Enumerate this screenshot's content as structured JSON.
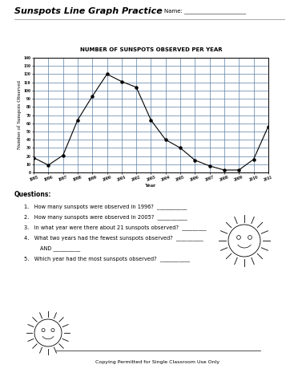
{
  "document": {
    "header": {
      "title": "Sunspots Line Graph Practice",
      "name_field": "Name: ______________________"
    },
    "questions": {
      "heading": "Questions:",
      "items": [
        [
          "1.   How many sunspots were observed in 1996?  ___________"
        ],
        [
          "2.   How many sunspots were observed in 2005?  ___________"
        ],
        [
          "3.   In what year were there about 21 sunspots observed?  _________"
        ],
        [
          "4.   What two years had the fewest sunspots observed?  __________",
          "AND __________"
        ],
        [
          "5.   Which year had the most sunspots observed?  ___________"
        ]
      ]
    },
    "footer": "Copying Permitted for Single Classroom Use Only"
  },
  "chart_data": {
    "type": "line",
    "title": "NUMBER OF SUNSPOTS OBSERVED PER YEAR",
    "x_label": "Year",
    "y_label": "Number of Sunspots Observed",
    "x": [
      1995,
      1996,
      1997,
      1998,
      1999,
      2000,
      2001,
      2002,
      2003,
      2004,
      2005,
      2006,
      2007,
      2008,
      2009,
      2010,
      2011
    ],
    "values": [
      18,
      9,
      21,
      64,
      93,
      120,
      111,
      104,
      64,
      40,
      30,
      15,
      8,
      3,
      3,
      16,
      56
    ],
    "color": "#000000",
    "marker": "o",
    "line_style": "solid",
    "xlim": [
      1995,
      2011
    ],
    "xticks": [
      1995,
      1996,
      1997,
      1998,
      1999,
      2000,
      2001,
      2002,
      2003,
      2004,
      2005,
      2006,
      2007,
      2008,
      2009,
      2010,
      2011
    ],
    "ylim": [
      0,
      140
    ],
    "yticks": [
      0,
      10,
      20,
      30,
      40,
      50,
      60,
      70,
      80,
      90,
      100,
      110,
      120,
      130,
      140
    ],
    "grid": true
  }
}
